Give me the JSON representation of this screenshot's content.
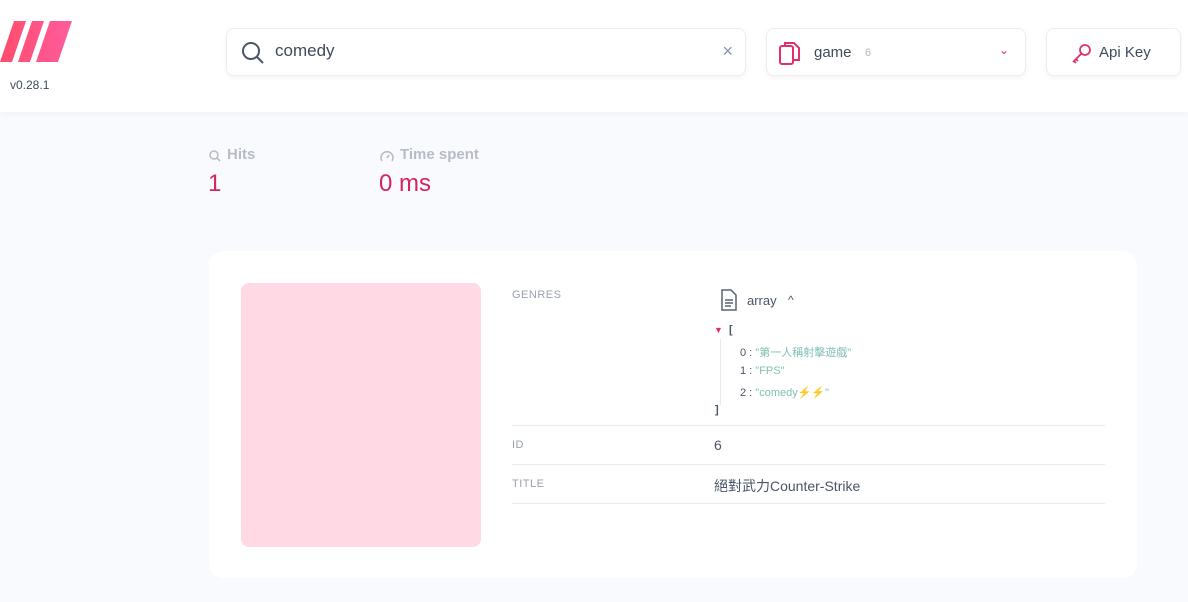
{
  "header": {
    "version": "v0.28.1",
    "search_value": "comedy",
    "index_name": "game",
    "index_count": "6",
    "api_key_label": "Api Key"
  },
  "stats": {
    "hits_label": "Hits",
    "hits_value": "1",
    "time_label": "Time spent",
    "time_value": "0 ms"
  },
  "result": {
    "genres_label": "GENRES",
    "genres_type": "array",
    "genres_type_caret": "^",
    "open_bracket": "[",
    "close_bracket": "]",
    "genres": [
      {
        "i": "0 :",
        "v": "\"第一人稱射擊遊戲\""
      },
      {
        "i": "1 :",
        "v": "\"FPS\""
      },
      {
        "i": "2 :",
        "v": "\"comedy⚡⚡\""
      }
    ],
    "id_label": "ID",
    "id_value": "6",
    "title_label": "TITLE",
    "title_value": "絕對武力Counter-Strike"
  },
  "colors": {
    "accent": "#e0306e",
    "image_placeholder": "#ffd9e4"
  }
}
